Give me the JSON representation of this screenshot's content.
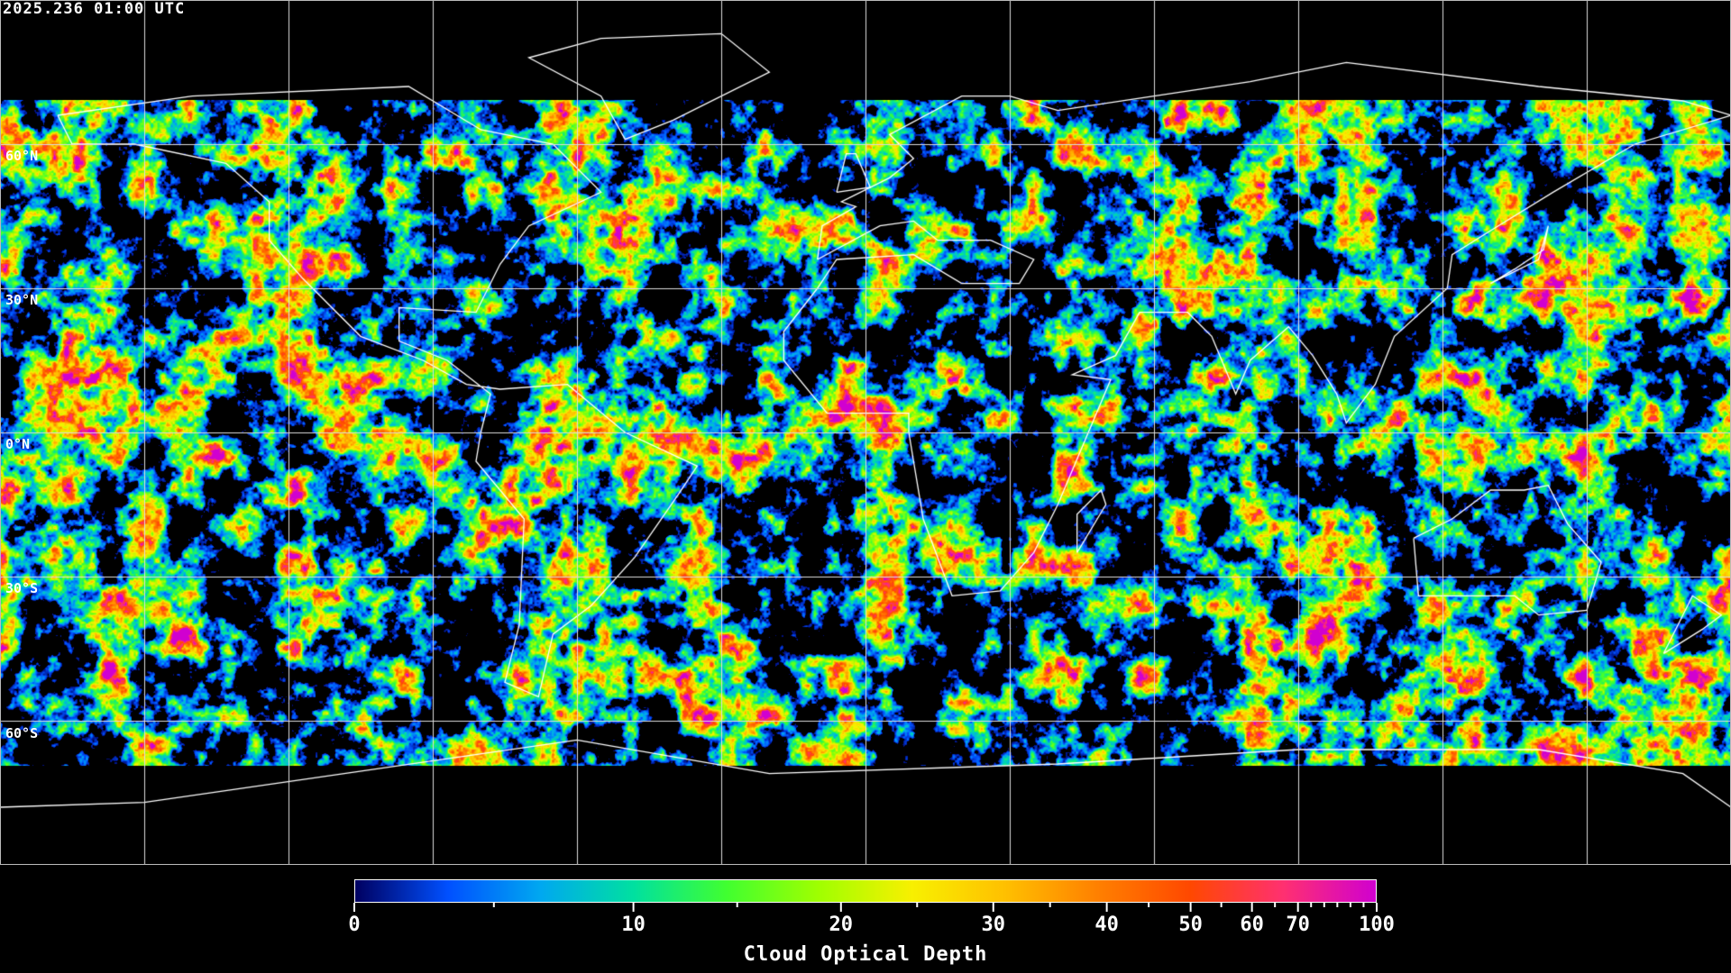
{
  "title": "2025.236 01:00 UTC",
  "lat_labels": [
    "60°N",
    "30°N",
    "0°N",
    "30°S",
    "60°S"
  ],
  "colorbar": {
    "label": "Cloud Optical Depth",
    "range": [
      0,
      100
    ],
    "major_ticks": [
      0,
      10,
      20,
      30,
      40,
      50,
      60,
      70,
      100
    ],
    "major_labels": [
      "0",
      "10",
      "20",
      "30",
      "40",
      "50",
      "60",
      "70",
      "100"
    ],
    "minor_ticks": [
      5,
      15,
      25,
      35,
      45,
      55,
      65,
      75,
      80,
      85,
      90,
      95
    ],
    "colors": [
      "#000060",
      "#0050ff",
      "#00a8f0",
      "#00e0a0",
      "#40ff30",
      "#a0ff00",
      "#f8f000",
      "#ffc000",
      "#ff8000",
      "#ff4800",
      "#ff3070",
      "#d000d0"
    ]
  },
  "grid": {
    "lon_step_deg": 30,
    "lat_step_deg": 30
  }
}
